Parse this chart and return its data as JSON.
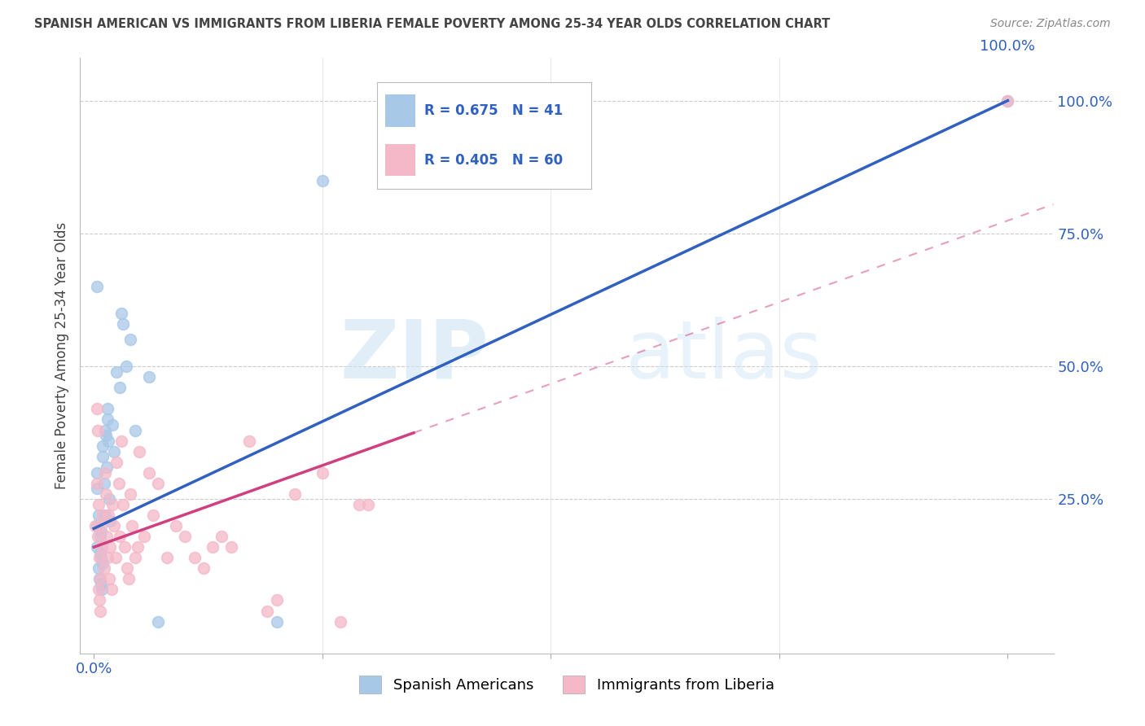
{
  "title": "SPANISH AMERICAN VS IMMIGRANTS FROM LIBERIA FEMALE POVERTY AMONG 25-34 YEAR OLDS CORRELATION CHART",
  "source": "Source: ZipAtlas.com",
  "ylabel": "Female Poverty Among 25-34 Year Olds",
  "watermark_zip": "ZIP",
  "watermark_atlas": "atlas",
  "blue_R": 0.675,
  "blue_N": 41,
  "pink_R": 0.405,
  "pink_N": 60,
  "blue_color": "#a8c8e8",
  "pink_color": "#f4b8c8",
  "blue_line_color": "#3060c0",
  "pink_line_color": "#d04080",
  "legend_R_color": "#3060c0",
  "title_color": "#444444",
  "source_color": "#888888",
  "axis_tick_color": "#3060c0",
  "ylabel_color": "#444444",
  "background_color": "#ffffff",
  "grid_color": "#cccccc",
  "marker_size": 100,
  "blue_scatter_x": [
    0.25,
    0.003,
    0.003,
    0.005,
    0.007,
    0.008,
    0.01,
    0.01,
    0.012,
    0.015,
    0.003,
    0.003,
    0.005,
    0.006,
    0.007,
    0.008,
    0.008,
    0.009,
    0.01,
    0.011,
    0.012,
    0.013,
    0.014,
    0.015,
    0.016,
    0.017,
    0.018,
    0.02,
    0.022,
    0.025,
    0.028,
    0.03,
    0.032,
    0.035,
    0.04,
    0.045,
    0.06,
    0.07,
    0.2,
    1.0,
    0.003
  ],
  "blue_scatter_y": [
    0.85,
    0.3,
    0.27,
    0.22,
    0.18,
    0.14,
    0.35,
    0.33,
    0.38,
    0.4,
    0.2,
    0.16,
    0.12,
    0.1,
    0.15,
    0.19,
    0.09,
    0.08,
    0.13,
    0.28,
    0.22,
    0.37,
    0.31,
    0.42,
    0.36,
    0.25,
    0.21,
    0.39,
    0.34,
    0.49,
    0.46,
    0.6,
    0.58,
    0.5,
    0.55,
    0.38,
    0.48,
    0.02,
    0.02,
    1.0,
    0.65
  ],
  "pink_scatter_x": [
    0.002,
    0.003,
    0.004,
    0.005,
    0.006,
    0.007,
    0.008,
    0.009,
    0.01,
    0.011,
    0.012,
    0.013,
    0.014,
    0.015,
    0.016,
    0.017,
    0.018,
    0.019,
    0.02,
    0.022,
    0.024,
    0.025,
    0.027,
    0.028,
    0.03,
    0.032,
    0.034,
    0.036,
    0.038,
    0.04,
    0.042,
    0.045,
    0.048,
    0.05,
    0.055,
    0.06,
    0.065,
    0.07,
    0.08,
    0.09,
    0.1,
    0.11,
    0.12,
    0.13,
    0.14,
    0.15,
    0.17,
    0.19,
    0.2,
    0.22,
    0.25,
    0.27,
    0.29,
    0.3,
    0.003,
    0.004,
    0.005,
    0.006,
    0.007,
    1.0
  ],
  "pink_scatter_y": [
    0.2,
    0.28,
    0.18,
    0.24,
    0.14,
    0.1,
    0.2,
    0.16,
    0.22,
    0.12,
    0.3,
    0.26,
    0.18,
    0.14,
    0.22,
    0.1,
    0.16,
    0.08,
    0.24,
    0.2,
    0.14,
    0.32,
    0.28,
    0.18,
    0.36,
    0.24,
    0.16,
    0.12,
    0.1,
    0.26,
    0.2,
    0.14,
    0.16,
    0.34,
    0.18,
    0.3,
    0.22,
    0.28,
    0.14,
    0.2,
    0.18,
    0.14,
    0.12,
    0.16,
    0.18,
    0.16,
    0.36,
    0.04,
    0.06,
    0.26,
    0.3,
    0.02,
    0.24,
    0.24,
    0.42,
    0.38,
    0.08,
    0.06,
    0.04,
    1.0
  ],
  "blue_line_x0": 0.0,
  "blue_line_y0": 0.195,
  "blue_line_x1": 1.0,
  "blue_line_y1": 1.0,
  "pink_line_x0": 0.0,
  "pink_line_y0": 0.16,
  "pink_line_x1": 0.35,
  "pink_line_y1": 0.375,
  "xlim": [
    -0.015,
    1.05
  ],
  "ylim": [
    -0.04,
    1.08
  ],
  "xticks": [
    0.0,
    0.25,
    0.5,
    0.75,
    1.0
  ],
  "yticks": [
    0.0,
    0.25,
    0.5,
    0.75,
    1.0
  ],
  "xtick_labels_left": [
    "0.0%",
    "",
    "",
    "",
    ""
  ],
  "xtick_labels_right": [
    "",
    "",
    "",
    "",
    "100.0%"
  ],
  "ytick_labels_right": [
    "",
    "25.0%",
    "50.0%",
    "75.0%",
    "100.0%"
  ]
}
